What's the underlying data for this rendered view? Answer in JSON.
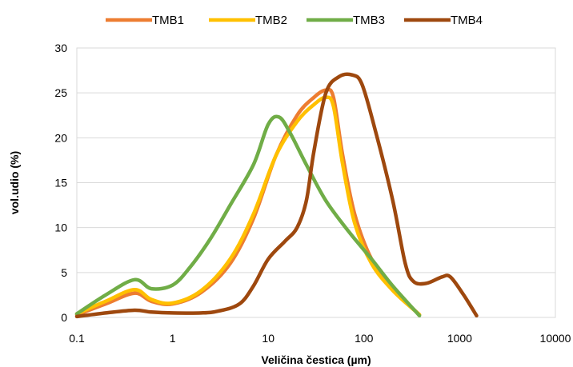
{
  "chart_data": {
    "type": "line",
    "title": "",
    "xlabel": "Veličina čestica (µm)",
    "ylabel": "vol.udio (%)",
    "x_scale": "log",
    "xlim": [
      0.1,
      10000
    ],
    "ylim": [
      0,
      30
    ],
    "x_ticks": [
      0.1,
      1,
      10,
      100,
      1000,
      10000
    ],
    "x_tick_labels": [
      "0.1",
      "1",
      "10",
      "100",
      "1000",
      "10000"
    ],
    "y_ticks": [
      0,
      5,
      10,
      15,
      20,
      25,
      30
    ],
    "y_tick_labels": [
      "0",
      "5",
      "10",
      "15",
      "20",
      "25",
      "30"
    ],
    "grid": "horizontal",
    "legend_position": "top",
    "series": [
      {
        "name": "TMB1",
        "color": "#ED7D31",
        "points": [
          [
            0.1,
            0.3
          ],
          [
            0.2,
            1.5
          ],
          [
            0.4,
            2.7
          ],
          [
            0.6,
            1.8
          ],
          [
            1,
            1.5
          ],
          [
            2,
            2.8
          ],
          [
            4,
            6
          ],
          [
            7,
            11
          ],
          [
            12,
            18
          ],
          [
            20,
            22.5
          ],
          [
            30,
            24.5
          ],
          [
            40,
            25.3
          ],
          [
            48,
            24.5
          ],
          [
            60,
            18
          ],
          [
            80,
            11.5
          ],
          [
            120,
            6.5
          ],
          [
            200,
            3.2
          ],
          [
            380,
            0.3
          ]
        ]
      },
      {
        "name": "TMB2",
        "color": "#FFC000",
        "points": [
          [
            0.1,
            0.4
          ],
          [
            0.2,
            1.8
          ],
          [
            0.4,
            3.1
          ],
          [
            0.6,
            2
          ],
          [
            1,
            1.6
          ],
          [
            2,
            3
          ],
          [
            4,
            6.5
          ],
          [
            7,
            11.5
          ],
          [
            12,
            18
          ],
          [
            20,
            21.8
          ],
          [
            30,
            23.7
          ],
          [
            40,
            24.5
          ],
          [
            48,
            23.5
          ],
          [
            60,
            17
          ],
          [
            80,
            10.5
          ],
          [
            120,
            6
          ],
          [
            200,
            3
          ],
          [
            380,
            0.3
          ]
        ]
      },
      {
        "name": "TMB3",
        "color": "#70AD47",
        "points": [
          [
            0.1,
            0.4
          ],
          [
            0.2,
            2.5
          ],
          [
            0.4,
            4.2
          ],
          [
            0.6,
            3.2
          ],
          [
            1,
            3.6
          ],
          [
            1.5,
            5.5
          ],
          [
            2.5,
            8.8
          ],
          [
            4,
            12.5
          ],
          [
            7,
            17
          ],
          [
            10,
            21.5
          ],
          [
            13,
            22.3
          ],
          [
            17,
            20.5
          ],
          [
            25,
            17
          ],
          [
            40,
            13
          ],
          [
            70,
            9.5
          ],
          [
            120,
            6.5
          ],
          [
            200,
            3.5
          ],
          [
            380,
            0.2
          ]
        ]
      },
      {
        "name": "TMB4",
        "color": "#9E480E",
        "points": [
          [
            0.1,
            0.1
          ],
          [
            0.2,
            0.5
          ],
          [
            0.4,
            0.8
          ],
          [
            0.6,
            0.6
          ],
          [
            1,
            0.5
          ],
          [
            2,
            0.5
          ],
          [
            3,
            0.7
          ],
          [
            5,
            1.5
          ],
          [
            7,
            3.5
          ],
          [
            10,
            6.5
          ],
          [
            15,
            8.5
          ],
          [
            20,
            10
          ],
          [
            25,
            13
          ],
          [
            30,
            18.5
          ],
          [
            40,
            25
          ],
          [
            55,
            26.8
          ],
          [
            75,
            27
          ],
          [
            95,
            26
          ],
          [
            130,
            21
          ],
          [
            200,
            13
          ],
          [
            270,
            6
          ],
          [
            330,
            4
          ],
          [
            450,
            3.8
          ],
          [
            650,
            4.5
          ],
          [
            800,
            4.5
          ],
          [
            1100,
            2.5
          ],
          [
            1500,
            0.2
          ]
        ]
      }
    ]
  }
}
